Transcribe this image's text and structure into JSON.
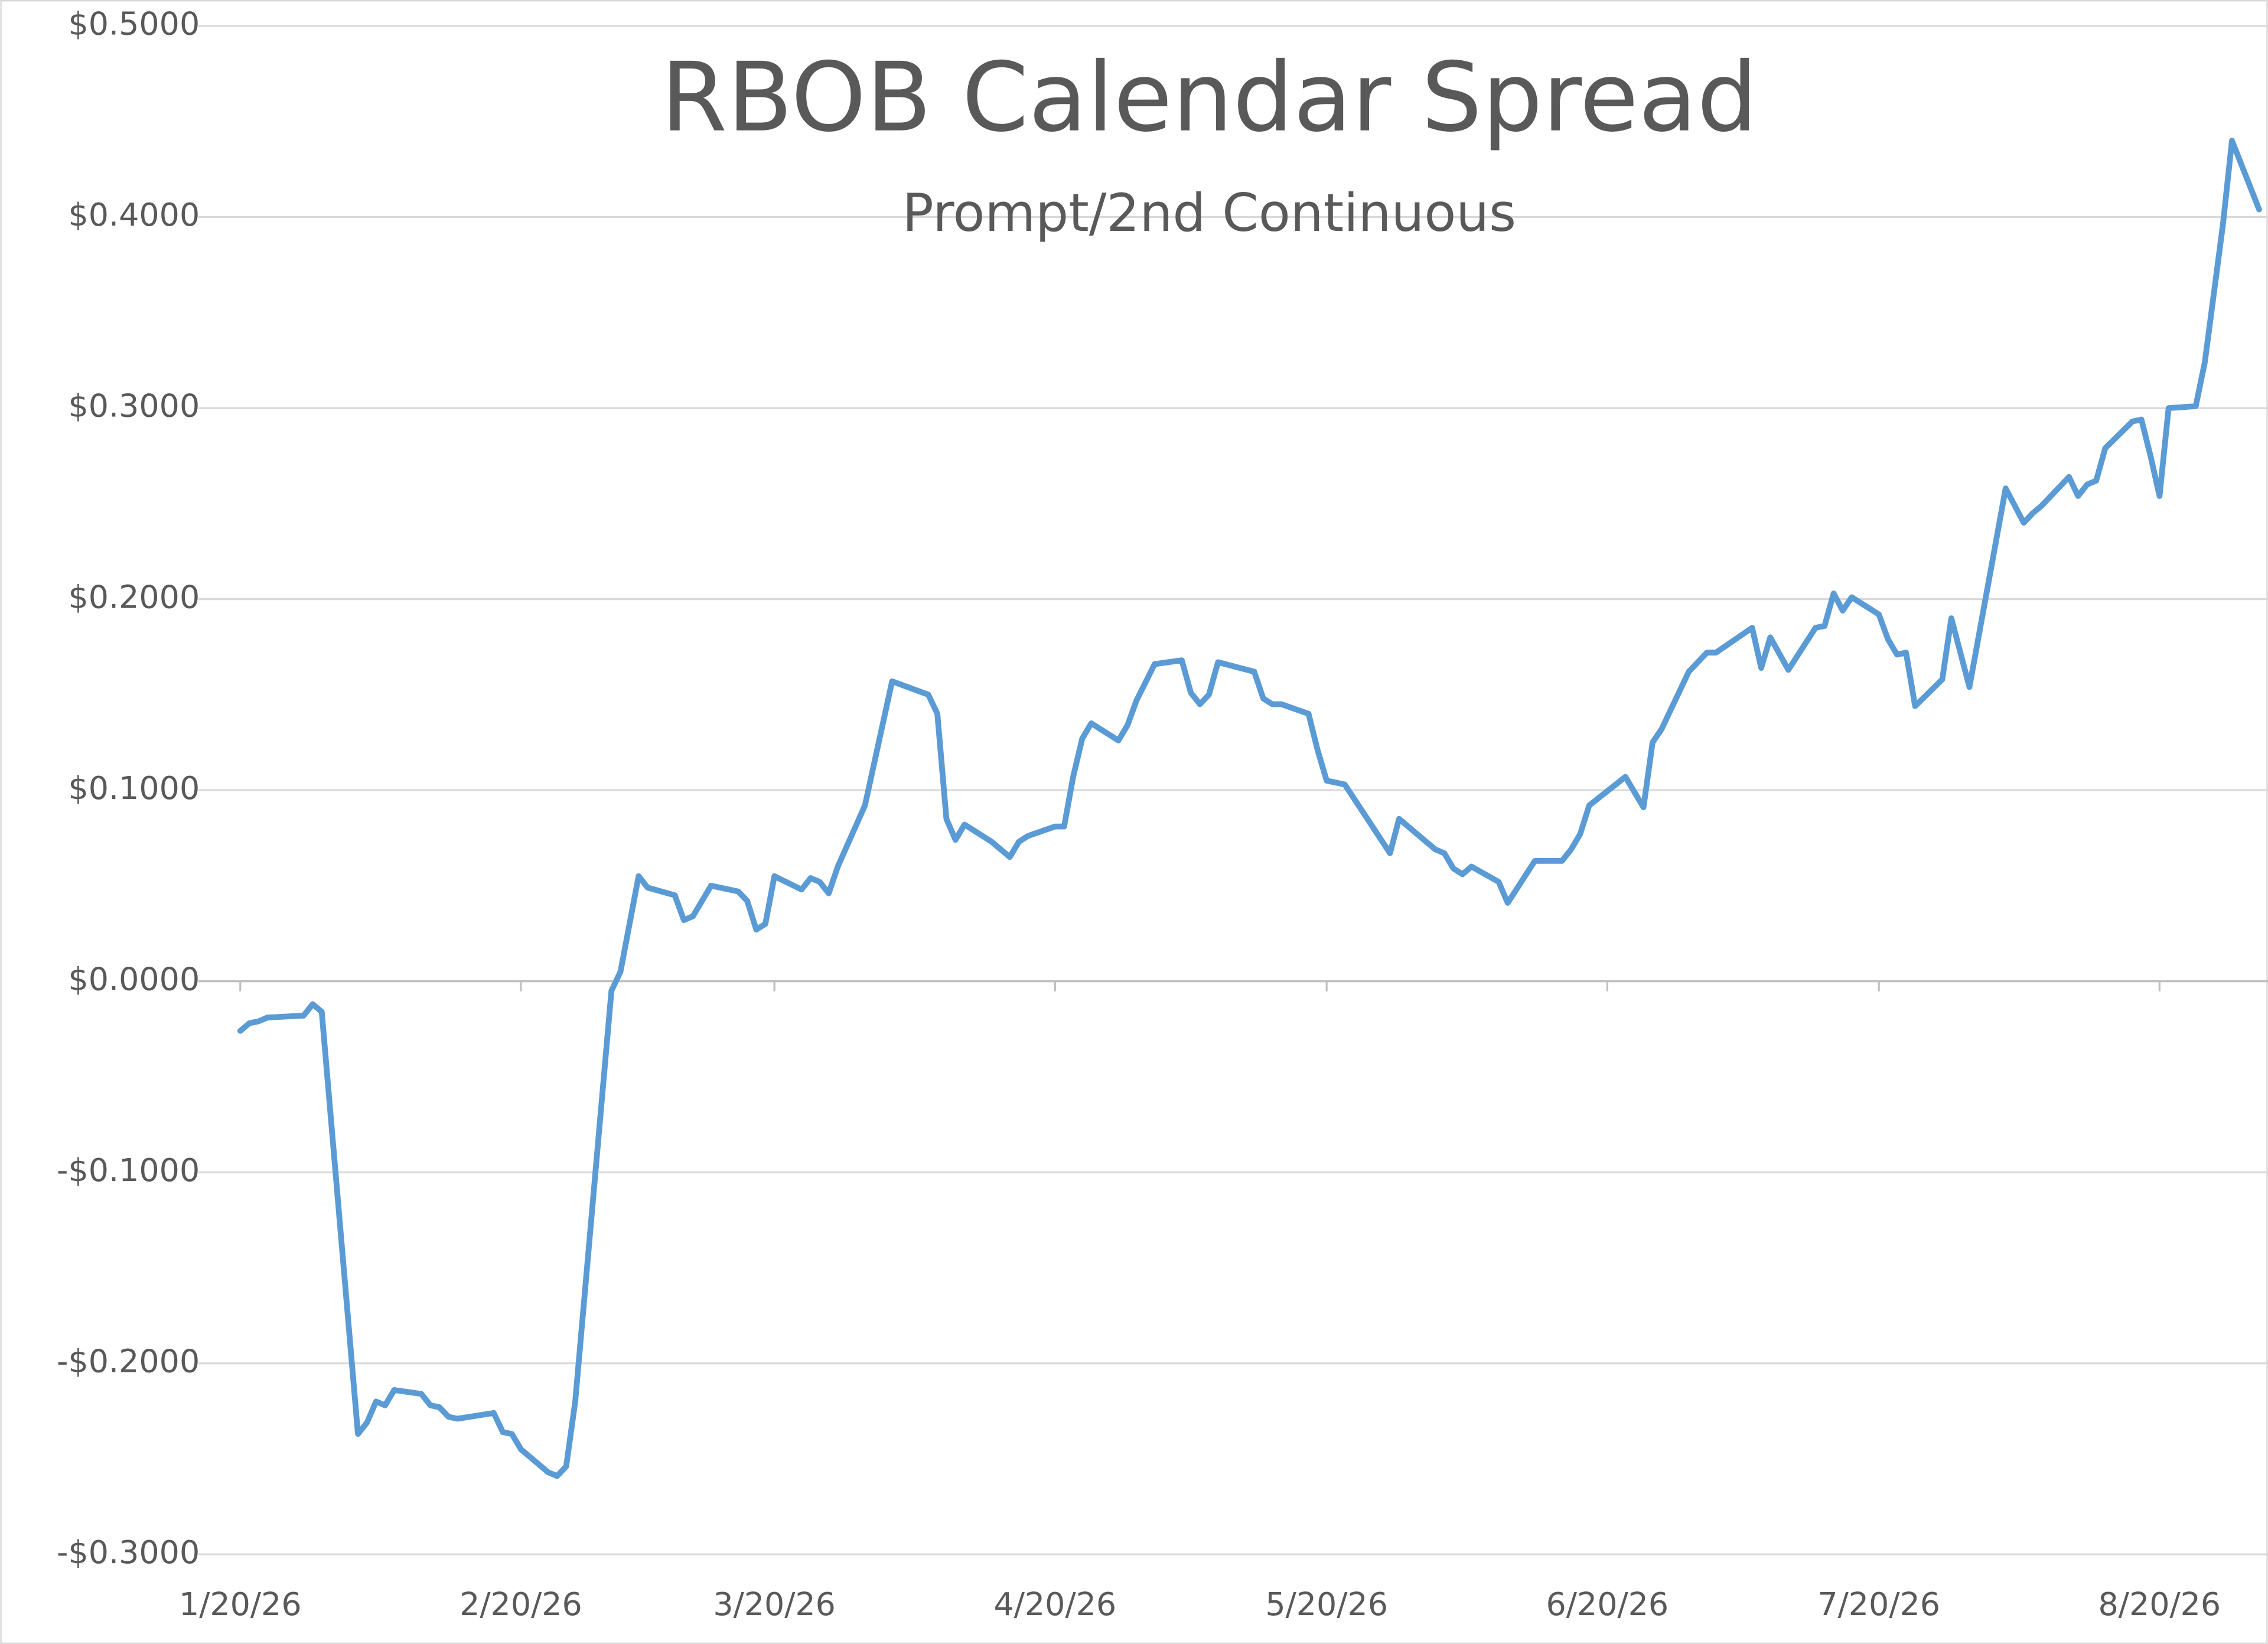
{
  "chart_data": {
    "type": "line",
    "title": "RBOB Calendar Spread",
    "subtitle": "Prompt/2nd Continuous",
    "x": [
      "2026-01-20",
      "2026-01-21",
      "2026-01-22",
      "2026-01-23",
      "2026-01-27",
      "2026-01-28",
      "2026-01-29",
      "2026-02-02",
      "2026-02-03",
      "2026-02-04",
      "2026-02-05",
      "2026-02-06",
      "2026-02-09",
      "2026-02-10",
      "2026-02-11",
      "2026-02-12",
      "2026-02-13",
      "2026-02-17",
      "2026-02-18",
      "2026-02-19",
      "2026-02-20",
      "2026-02-23",
      "2026-02-24",
      "2026-02-25",
      "2026-02-26",
      "2026-03-02",
      "2026-03-03",
      "2026-03-05",
      "2026-03-06",
      "2026-03-09",
      "2026-03-10",
      "2026-03-11",
      "2026-03-13",
      "2026-03-16",
      "2026-03-17",
      "2026-03-18",
      "2026-03-19",
      "2026-03-20",
      "2026-03-23",
      "2026-03-24",
      "2026-03-25",
      "2026-03-26",
      "2026-03-27",
      "2026-03-30",
      "2026-04-02",
      "2026-04-06",
      "2026-04-07",
      "2026-04-08",
      "2026-04-09",
      "2026-04-10",
      "2026-04-13",
      "2026-04-15",
      "2026-04-16",
      "2026-04-17",
      "2026-04-20",
      "2026-04-21",
      "2026-04-22",
      "2026-04-23",
      "2026-04-24",
      "2026-04-27",
      "2026-04-28",
      "2026-04-29",
      "2026-05-01",
      "2026-05-04",
      "2026-05-05",
      "2026-05-06",
      "2026-05-07",
      "2026-05-08",
      "2026-05-12",
      "2026-05-13",
      "2026-05-14",
      "2026-05-15",
      "2026-05-18",
      "2026-05-19",
      "2026-05-20",
      "2026-05-22",
      "2026-05-27",
      "2026-05-28",
      "2026-06-01",
      "2026-06-02",
      "2026-06-03",
      "2026-06-04",
      "2026-06-05",
      "2026-06-08",
      "2026-06-09",
      "2026-06-12",
      "2026-06-15",
      "2026-06-16",
      "2026-06-17",
      "2026-06-18",
      "2026-06-22",
      "2026-06-24",
      "2026-06-25",
      "2026-06-26",
      "2026-06-29",
      "2026-07-01",
      "2026-07-02",
      "2026-07-06",
      "2026-07-07",
      "2026-07-08",
      "2026-07-10",
      "2026-07-13",
      "2026-07-14",
      "2026-07-15",
      "2026-07-16",
      "2026-07-17",
      "2026-07-20",
      "2026-07-21",
      "2026-07-22",
      "2026-07-23",
      "2026-07-24",
      "2026-07-27",
      "2026-07-28",
      "2026-07-30",
      "2026-08-03",
      "2026-08-05",
      "2026-08-06",
      "2026-08-07",
      "2026-08-10",
      "2026-08-11",
      "2026-08-12",
      "2026-08-13",
      "2026-08-14",
      "2026-08-17",
      "2026-08-18",
      "2026-08-19",
      "2026-08-20",
      "2026-08-21",
      "2026-08-24",
      "2026-08-25",
      "2026-08-27",
      "2026-08-28",
      "2026-08-31"
    ],
    "series": [
      {
        "color": "#5b9bd5",
        "values": [
          -0.026,
          -0.022,
          -0.021,
          -0.019,
          -0.018,
          -0.012,
          -0.016,
          -0.237,
          -0.231,
          -0.22,
          -0.222,
          -0.214,
          -0.216,
          -0.222,
          -0.223,
          -0.228,
          -0.229,
          -0.226,
          -0.236,
          -0.237,
          -0.245,
          -0.257,
          -0.259,
          -0.254,
          -0.22,
          -0.005,
          0.005,
          0.055,
          0.049,
          0.045,
          0.032,
          0.034,
          0.05,
          0.047,
          0.042,
          0.027,
          0.03,
          0.055,
          0.048,
          0.054,
          0.052,
          0.046,
          0.06,
          0.092,
          0.157,
          0.15,
          0.14,
          0.085,
          0.074,
          0.082,
          0.073,
          0.065,
          0.073,
          0.076,
          0.081,
          0.081,
          0.107,
          0.127,
          0.135,
          0.126,
          0.134,
          0.147,
          0.166,
          0.168,
          0.151,
          0.145,
          0.15,
          0.167,
          0.162,
          0.148,
          0.145,
          0.145,
          0.14,
          0.121,
          0.105,
          0.103,
          0.067,
          0.085,
          0.069,
          0.067,
          0.059,
          0.056,
          0.06,
          0.052,
          0.041,
          0.063,
          0.063,
          0.069,
          0.077,
          0.092,
          0.107,
          0.091,
          0.125,
          0.132,
          0.162,
          0.172,
          0.172,
          0.185,
          0.164,
          0.18,
          0.163,
          0.185,
          0.186,
          0.203,
          0.194,
          0.201,
          0.192,
          0.179,
          0.171,
          0.172,
          0.144,
          0.158,
          0.19,
          0.154,
          0.258,
          0.24,
          0.245,
          0.249,
          0.264,
          0.254,
          0.26,
          0.262,
          0.279,
          0.293,
          0.294,
          0.275,
          0.254,
          0.3,
          0.301,
          0.324,
          0.396,
          0.44,
          0.404
        ]
      }
    ],
    "xlim": [
      "2026-01-20",
      "2026-08-31"
    ],
    "xticks": [
      {
        "value": "2026-01-20",
        "label": "1/20/26"
      },
      {
        "value": "2026-02-20",
        "label": "2/20/26"
      },
      {
        "value": "2026-03-20",
        "label": "3/20/26"
      },
      {
        "value": "2026-04-20",
        "label": "4/20/26"
      },
      {
        "value": "2026-05-20",
        "label": "5/20/26"
      },
      {
        "value": "2026-06-20",
        "label": "6/20/26"
      },
      {
        "value": "2026-07-20",
        "label": "7/20/26"
      },
      {
        "value": "2026-08-20",
        "label": "8/20/26"
      }
    ],
    "ylim": [
      -0.3,
      0.5
    ],
    "yticks": [
      {
        "value": -0.3,
        "label": "-$0.3000"
      },
      {
        "value": -0.2,
        "label": "-$0.2000"
      },
      {
        "value": -0.1,
        "label": "-$0.1000"
      },
      {
        "value": 0,
        "label": "$0.0000"
      },
      {
        "value": 0.1,
        "label": "$0.1000"
      },
      {
        "value": 0.2,
        "label": "$0.2000"
      },
      {
        "value": 0.3,
        "label": "$0.3000"
      },
      {
        "value": 0.4,
        "label": "$0.4000"
      },
      {
        "value": 0.5,
        "label": "$0.5000"
      }
    ],
    "grid": true
  }
}
